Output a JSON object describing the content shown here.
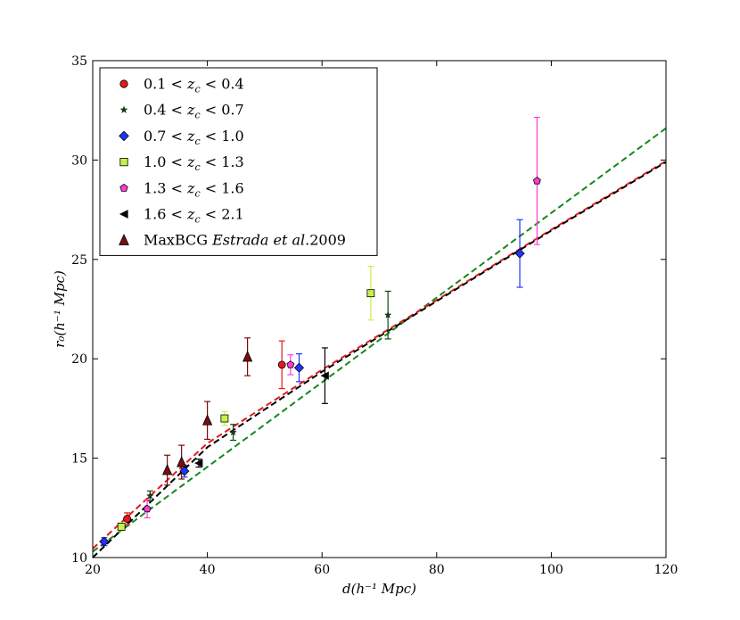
{
  "chart_data": {
    "type": "scatter",
    "xlabel": "d(h⁻¹ Mpc)",
    "ylabel": "r₀(h⁻¹ Mpc)",
    "xlim": [
      20,
      120
    ],
    "ylim": [
      10,
      35
    ],
    "xticks": [
      20,
      40,
      60,
      80,
      100,
      120
    ],
    "yticks": [
      10,
      15,
      20,
      25,
      30,
      35
    ],
    "xtick_labels": [
      "20",
      "40",
      "60",
      "80",
      "100",
      "120"
    ],
    "ytick_labels": [
      "10",
      "15",
      "20",
      "25",
      "30",
      "35"
    ],
    "grid": false,
    "legend_position": "top-left",
    "series": [
      {
        "name": "0.1 < z_c < 0.4",
        "color": "#e31a1c",
        "marker": "circle",
        "points": [
          [
            26.0,
            11.95,
            0.3
          ],
          [
            53.0,
            19.7,
            1.2
          ]
        ]
      },
      {
        "name": "0.4 < z_c < 0.7",
        "color": "#0b4a12",
        "marker": "star",
        "points": [
          [
            30.0,
            13.1,
            0.25
          ],
          [
            44.5,
            16.3,
            0.4
          ],
          [
            71.5,
            22.2,
            1.2
          ]
        ]
      },
      {
        "name": "0.7 < z_c < 1.0",
        "color": "#1f35ff",
        "marker": "diamond",
        "points": [
          [
            22.0,
            10.8,
            0.2
          ],
          [
            36.0,
            14.35,
            0.3
          ],
          [
            56.0,
            19.55,
            0.7
          ],
          [
            94.5,
            25.3,
            1.7
          ]
        ]
      },
      {
        "name": "1.0 < z_c < 1.3",
        "color": "#c8f04a",
        "marker": "square",
        "points": [
          [
            25.0,
            11.55,
            0.2
          ],
          [
            43.0,
            17.0,
            0.35
          ],
          [
            68.5,
            23.3,
            1.35
          ]
        ]
      },
      {
        "name": "1.3 < z_c < 1.6",
        "color": "#ff3bd5",
        "marker": "pentagon",
        "points": [
          [
            29.5,
            12.45,
            0.45
          ],
          [
            54.5,
            19.7,
            0.5
          ],
          [
            97.5,
            28.95,
            3.2
          ]
        ]
      },
      {
        "name": "1.6 < z_c < 2.1",
        "color": "#000000",
        "marker": "triangle-left",
        "points": [
          [
            38.5,
            14.75,
            0.2
          ],
          [
            60.5,
            19.15,
            1.4
          ]
        ]
      },
      {
        "name": "MaxBCG",
        "name_suffix": "Estrada et al.",
        "name_year": "2009",
        "color": "#7a0d0d",
        "marker": "triangle-up",
        "points": [
          [
            33.0,
            14.4,
            0.75
          ],
          [
            35.5,
            14.8,
            0.85
          ],
          [
            40.0,
            16.9,
            0.95
          ],
          [
            47.0,
            20.1,
            0.95
          ]
        ]
      }
    ],
    "fit_lines": [
      {
        "color": "#18861c",
        "style": "dashed",
        "points": [
          [
            20,
            10.3
          ],
          [
            120,
            31.6
          ]
        ]
      },
      {
        "color": "#e31a1c",
        "style": "dashed",
        "points": [
          [
            20,
            10.45
          ],
          [
            40,
            15.75
          ],
          [
            60,
            19.45
          ],
          [
            80,
            22.95
          ],
          [
            100,
            26.5
          ],
          [
            120,
            29.95
          ]
        ]
      },
      {
        "color": "#000000",
        "style": "dashed",
        "points": [
          [
            20,
            10.0
          ],
          [
            40,
            15.55
          ],
          [
            60,
            19.35
          ],
          [
            80,
            22.9
          ],
          [
            100,
            26.45
          ],
          [
            120,
            29.9
          ]
        ]
      }
    ]
  }
}
